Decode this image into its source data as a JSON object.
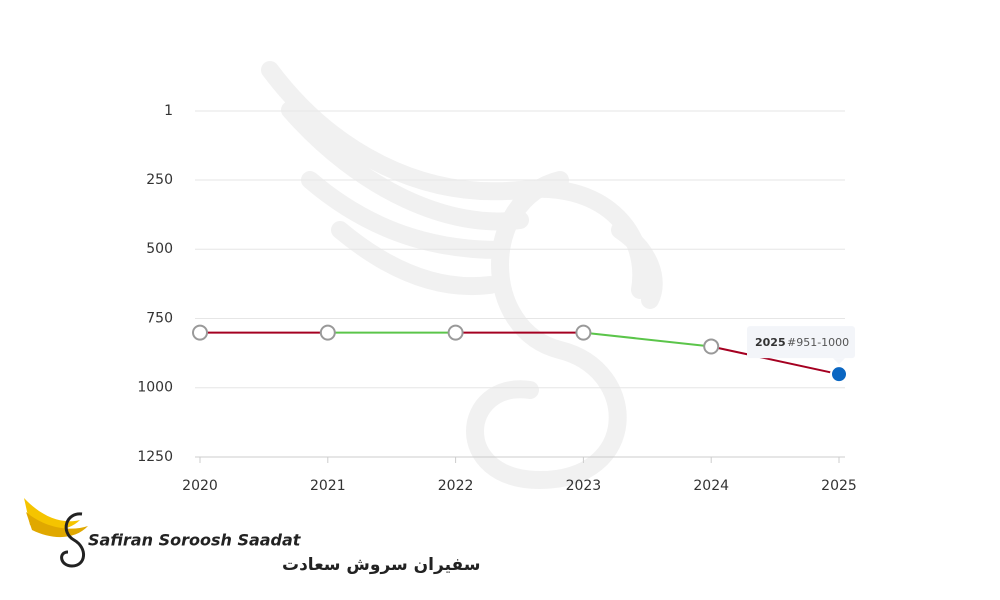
{
  "chart_data": {
    "type": "line",
    "categories": [
      "2020",
      "2021",
      "2022",
      "2023",
      "2024",
      "2025"
    ],
    "values": [
      801,
      801,
      801,
      801,
      851,
      951
    ],
    "segment_colors": [
      "#a50021",
      "#5bc54a",
      "#a50021",
      "#5bc54a",
      "#a50021"
    ],
    "point_color": "#0a66c2",
    "ylim": [
      1,
      1250
    ],
    "inverted": true,
    "yticks": [
      1,
      250,
      500,
      750,
      1000,
      1250
    ],
    "grid": true,
    "tooltip": {
      "index": 5,
      "label": "#951-1000"
    }
  },
  "logo": {
    "name_en": "Safiran Soroosh Saadat",
    "name_fa": "سفیران سروش سعادت"
  }
}
